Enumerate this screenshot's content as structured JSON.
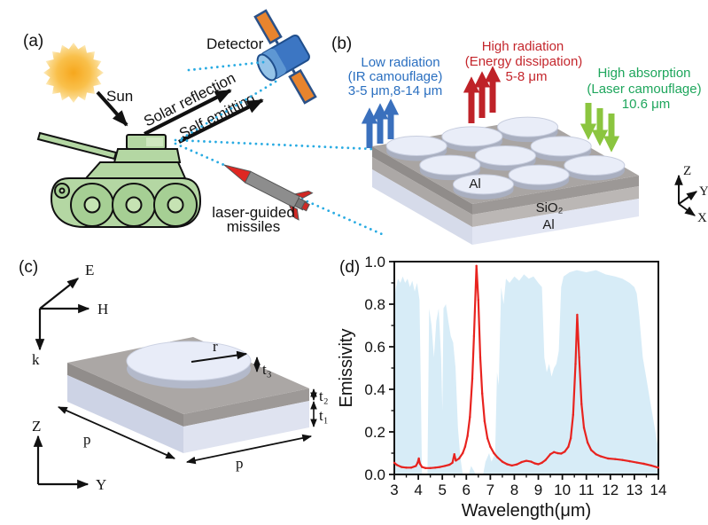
{
  "panel_a": {
    "label": "(a)",
    "sun_label": "Sun",
    "detector_label": "Detector",
    "solar_reflection_label": "Solar reflection",
    "self_emitting_label": "Self emitting",
    "missile_label_line1": "laser-guided",
    "missile_label_line2": "missiles",
    "colors": {
      "tank_green": "#b4d7a3",
      "sun_yellow": "#f9b233",
      "dotted_cyan": "#29abe2",
      "satellite_blue": "#3c76c3",
      "panel_orange": "#e8842e",
      "missile_red": "#df2722"
    }
  },
  "panel_b": {
    "label": "(b)",
    "blue_annotation": {
      "line1": "Low radiation",
      "line2": "(IR camouflage)",
      "line3": "3-5 μm,8-14 μm",
      "text_color": "#2a6fc0",
      "arrow_color": "#3a70bd",
      "direction": "up"
    },
    "red_annotation": {
      "line1": "High radiation",
      "line2": "(Energy dissipation)",
      "line3": "5-8 μm",
      "text_color": "#c4262c",
      "arrow_color": "#bf2228",
      "direction": "up"
    },
    "green_annotation": {
      "line1": "High absorption",
      "line2": "(Laser camouflage)",
      "line3": "10.6 μm",
      "text_color": "#1ea65c",
      "arrow_color": "#8bc53f",
      "direction": "down"
    },
    "layers": {
      "top": "Al",
      "middle": "SiO₂",
      "bottom": "Al"
    },
    "axes": {
      "z": "Z",
      "y": "Y",
      "x": "X"
    }
  },
  "panel_c": {
    "label": "(c)",
    "field_axes": {
      "e": "E",
      "h": "H",
      "k": "k"
    },
    "axes": {
      "z": "Z",
      "y": "Y"
    },
    "dims": {
      "r": "r",
      "t3": "t₃",
      "t2": "t₂",
      "t1": "t₁",
      "p_left": "p",
      "p_front": "p"
    }
  },
  "panel_d": {
    "label": "(d)"
  },
  "chart_data": {
    "type": "line",
    "title": "",
    "xlabel": "Wavelength(μm)",
    "ylabel": "Emissivity",
    "xlim": [
      3,
      14
    ],
    "ylim": [
      0.0,
      1.0
    ],
    "x_ticks": [
      3,
      4,
      5,
      6,
      7,
      8,
      9,
      10,
      11,
      12,
      13,
      14
    ],
    "y_ticks": [
      "0.0",
      "0.2",
      "0.4",
      "0.6",
      "0.8",
      "1.0"
    ],
    "grid": false,
    "legend_position": "none",
    "series": [
      {
        "name": "atmospheric transmittance window",
        "type": "area",
        "color": "#d7ecf7",
        "x": [
          3.0,
          3.05,
          3.15,
          3.25,
          3.35,
          3.45,
          3.55,
          3.65,
          3.75,
          3.85,
          3.95,
          4.05,
          4.1,
          4.15,
          4.38,
          4.45,
          4.55,
          4.65,
          4.75,
          4.85,
          4.95,
          5.0,
          5.05,
          5.15,
          5.25,
          5.35,
          5.45,
          5.55,
          5.65,
          5.75,
          5.85,
          6.1,
          6.2,
          6.4,
          6.7,
          6.8,
          6.95,
          7.05,
          7.2,
          7.28,
          7.35,
          7.45,
          7.55,
          7.65,
          7.8,
          8.0,
          8.2,
          8.4,
          8.6,
          8.8,
          9.0,
          9.15,
          9.25,
          9.35,
          9.45,
          9.55,
          9.65,
          9.75,
          9.85,
          9.95,
          10.05,
          10.3,
          10.6,
          11.0,
          11.4,
          11.8,
          12.2,
          12.5,
          12.8,
          13.0,
          13.1,
          13.2,
          13.35,
          13.5,
          13.65,
          13.8,
          14.0
        ],
        "y": [
          0.8,
          0.87,
          0.92,
          0.9,
          0.93,
          0.9,
          0.92,
          0.88,
          0.91,
          0.86,
          0.9,
          0.82,
          0.45,
          0.0,
          0.0,
          0.78,
          0.7,
          0.55,
          0.72,
          0.78,
          0.55,
          0.3,
          0.78,
          0.8,
          0.72,
          0.65,
          0.62,
          0.5,
          0.22,
          0.08,
          0.0,
          0.0,
          0.04,
          0.0,
          0.0,
          0.06,
          0.1,
          0.06,
          0.1,
          0.48,
          0.42,
          0.88,
          0.8,
          0.92,
          0.9,
          0.93,
          0.91,
          0.94,
          0.92,
          0.93,
          0.9,
          0.88,
          0.55,
          0.48,
          0.52,
          0.46,
          0.5,
          0.52,
          0.58,
          0.88,
          0.93,
          0.95,
          0.96,
          0.95,
          0.96,
          0.94,
          0.93,
          0.92,
          0.9,
          0.88,
          0.85,
          0.75,
          0.55,
          0.45,
          0.35,
          0.25,
          0.12
        ]
      },
      {
        "name": "emissivity spectrum",
        "type": "line",
        "color": "#e8231f",
        "x": [
          3.0,
          3.1,
          3.3,
          3.5,
          3.7,
          3.9,
          3.97,
          4.02,
          4.07,
          4.15,
          4.3,
          4.5,
          4.7,
          4.9,
          5.1,
          5.3,
          5.42,
          5.5,
          5.56,
          5.7,
          5.85,
          5.95,
          6.05,
          6.15,
          6.25,
          6.32,
          6.42,
          6.5,
          6.58,
          6.66,
          6.76,
          6.88,
          7.0,
          7.15,
          7.3,
          7.5,
          7.7,
          7.9,
          8.1,
          8.3,
          8.5,
          8.7,
          8.85,
          9.0,
          9.15,
          9.3,
          9.5,
          9.65,
          9.8,
          9.95,
          10.1,
          10.25,
          10.35,
          10.45,
          10.55,
          10.62,
          10.7,
          10.8,
          10.9,
          11.05,
          11.2,
          11.4,
          11.6,
          11.9,
          12.2,
          12.5,
          12.8,
          13.1,
          13.4,
          13.7,
          14.0
        ],
        "y": [
          0.055,
          0.045,
          0.035,
          0.032,
          0.032,
          0.04,
          0.055,
          0.075,
          0.05,
          0.035,
          0.03,
          0.03,
          0.032,
          0.035,
          0.04,
          0.046,
          0.055,
          0.095,
          0.065,
          0.075,
          0.1,
          0.13,
          0.18,
          0.27,
          0.45,
          0.65,
          0.98,
          0.82,
          0.55,
          0.38,
          0.25,
          0.17,
          0.13,
          0.1,
          0.08,
          0.06,
          0.048,
          0.042,
          0.047,
          0.058,
          0.064,
          0.06,
          0.052,
          0.048,
          0.055,
          0.068,
          0.095,
          0.105,
          0.1,
          0.098,
          0.107,
          0.13,
          0.17,
          0.28,
          0.52,
          0.75,
          0.55,
          0.33,
          0.22,
          0.15,
          0.115,
          0.095,
          0.085,
          0.075,
          0.072,
          0.068,
          0.062,
          0.056,
          0.05,
          0.042,
          0.032
        ]
      }
    ]
  }
}
